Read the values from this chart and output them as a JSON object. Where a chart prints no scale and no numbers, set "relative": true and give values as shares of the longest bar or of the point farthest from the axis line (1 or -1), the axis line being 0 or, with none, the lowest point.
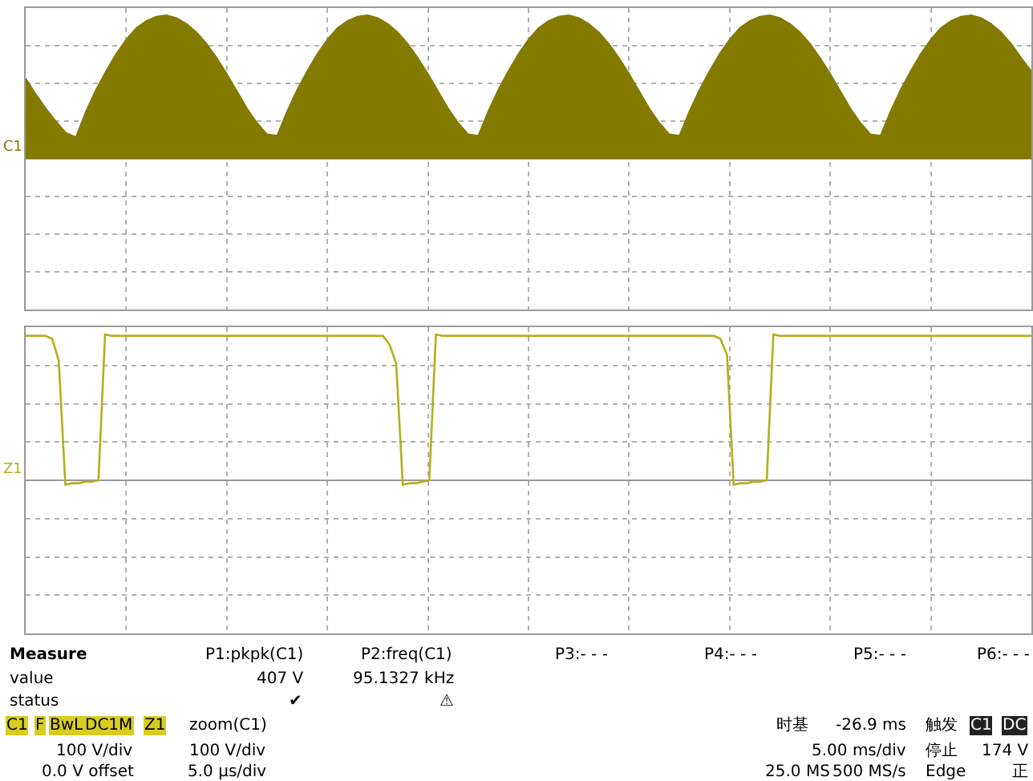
{
  "chart_data": [
    {
      "type": "area",
      "relative": true,
      "grid": true,
      "annotations": [
        "C1"
      ],
      "categories": [
        null,
        null,
        null,
        null,
        null,
        null,
        null,
        null,
        null,
        null,
        null,
        null,
        null,
        null,
        null,
        null,
        null,
        null,
        null,
        null,
        null,
        null,
        null,
        null,
        null,
        null,
        null,
        null,
        null,
        null,
        null,
        null,
        null,
        null,
        null,
        null,
        null,
        null,
        null,
        null,
        null,
        null,
        null,
        null,
        null,
        null,
        null,
        null,
        null,
        null,
        null,
        null,
        null,
        null,
        null,
        null,
        null,
        null,
        null,
        null,
        null,
        null,
        null,
        null,
        null,
        null,
        null,
        null,
        null,
        null,
        null,
        null,
        null,
        null,
        null,
        null,
        null,
        null,
        null,
        null,
        null,
        null,
        null,
        null,
        null,
        null,
        null,
        null,
        null,
        null,
        null,
        null,
        null,
        null,
        null,
        null,
        null,
        null,
        null,
        null,
        null
      ],
      "series": [
        {
          "color": "#857a00",
          "values": [
            0.56,
            0.45,
            0.35,
            0.26,
            0.18,
            0.15,
            0.33,
            0.48,
            0.61,
            0.73,
            0.83,
            0.91,
            0.96,
            0.99,
            1.0,
            0.98,
            0.94,
            0.88,
            0.8,
            0.7,
            0.59,
            0.47,
            0.35,
            0.25,
            0.17,
            0.16,
            0.33,
            0.48,
            0.61,
            0.73,
            0.83,
            0.91,
            0.96,
            0.99,
            1.0,
            0.98,
            0.94,
            0.88,
            0.8,
            0.7,
            0.59,
            0.47,
            0.35,
            0.25,
            0.17,
            0.16,
            0.33,
            0.48,
            0.61,
            0.73,
            0.83,
            0.91,
            0.96,
            0.99,
            1.0,
            0.98,
            0.94,
            0.88,
            0.8,
            0.7,
            0.59,
            0.47,
            0.35,
            0.25,
            0.17,
            0.16,
            0.33,
            0.48,
            0.61,
            0.73,
            0.83,
            0.91,
            0.96,
            0.99,
            1.0,
            0.98,
            0.94,
            0.88,
            0.8,
            0.7,
            0.59,
            0.47,
            0.35,
            0.25,
            0.17,
            0.16,
            0.33,
            0.48,
            0.61,
            0.73,
            0.83,
            0.91,
            0.96,
            0.99,
            1.0,
            0.98,
            0.94,
            0.88,
            0.8,
            0.7,
            0.61
          ]
        }
      ]
    },
    {
      "type": "line",
      "relative": true,
      "grid": true,
      "marker": "none",
      "line_style": "solid",
      "annotations": [
        "Z1"
      ],
      "categories": [
        null,
        null,
        null,
        null,
        null,
        null,
        null,
        null,
        null,
        null,
        null,
        null,
        null,
        null,
        null,
        null,
        null,
        null,
        null,
        null,
        null,
        null,
        null,
        null,
        null,
        null,
        null,
        null,
        null,
        null,
        null,
        null,
        null,
        null,
        null,
        null,
        null,
        null,
        null,
        null,
        null,
        null,
        null,
        null,
        null,
        null,
        null,
        null,
        null,
        null,
        null,
        null,
        null,
        null,
        null,
        null,
        null,
        null,
        null,
        null,
        null,
        null,
        null,
        null,
        null,
        null,
        null,
        null,
        null,
        null,
        null,
        null,
        null,
        null,
        null,
        null,
        null,
        null,
        null,
        null,
        null,
        null,
        null,
        null,
        null,
        null,
        null,
        null,
        null,
        null,
        null,
        null,
        null,
        null,
        null,
        null,
        null,
        null,
        null,
        null,
        null,
        null,
        null,
        null,
        null,
        null,
        null,
        null,
        null,
        null,
        null,
        null,
        null,
        null,
        null,
        null,
        null,
        null,
        null,
        null,
        null,
        null,
        null,
        null,
        null,
        null,
        null,
        null,
        null,
        null,
        null,
        null,
        null,
        null,
        null,
        null,
        null,
        null,
        null,
        null,
        null,
        null,
        null,
        null,
        null,
        null,
        null,
        null,
        null,
        null,
        null,
        null,
        null
      ],
      "series": [
        {
          "color": "#b5ad1a",
          "values": [
            0.99,
            0.99,
            0.99,
            0.99,
            0.97,
            0.82,
            -0.03,
            -0.02,
            -0.02,
            -0.01,
            -0.01,
            0.0,
            1.0,
            0.99,
            0.99,
            0.99,
            0.99,
            0.99,
            0.99,
            0.99,
            0.99,
            0.99,
            0.99,
            0.99,
            0.99,
            0.99,
            0.99,
            0.99,
            0.99,
            0.99,
            0.99,
            0.99,
            0.99,
            0.99,
            0.99,
            0.99,
            0.99,
            0.99,
            0.99,
            0.99,
            0.99,
            0.99,
            0.99,
            0.99,
            0.99,
            0.99,
            0.99,
            0.99,
            0.99,
            0.99,
            0.99,
            0.99,
            0.99,
            0.99,
            0.99,
            0.93,
            0.8,
            -0.03,
            -0.02,
            -0.02,
            -0.01,
            0.0,
            1.0,
            0.99,
            0.99,
            0.99,
            0.99,
            0.99,
            0.99,
            0.99,
            0.99,
            0.99,
            0.99,
            0.99,
            0.99,
            0.99,
            0.99,
            0.99,
            0.99,
            0.99,
            0.99,
            0.99,
            0.99,
            0.99,
            0.99,
            0.99,
            0.99,
            0.99,
            0.99,
            0.99,
            0.99,
            0.99,
            0.99,
            0.99,
            0.99,
            0.99,
            0.99,
            0.99,
            0.99,
            0.99,
            0.99,
            0.99,
            0.99,
            0.99,
            0.99,
            0.97,
            0.86,
            -0.03,
            -0.02,
            -0.02,
            -0.01,
            -0.01,
            0.0,
            1.0,
            0.99,
            0.99,
            0.99,
            0.99,
            0.99,
            0.99,
            0.99,
            0.99,
            0.99,
            0.99,
            0.99,
            0.99,
            0.99,
            0.99,
            0.99,
            0.99,
            0.99,
            0.99,
            0.99,
            0.99,
            0.99,
            0.99,
            0.99,
            0.99,
            0.99,
            0.99,
            0.99,
            0.99,
            0.99,
            0.99,
            0.99,
            0.99,
            0.99,
            0.99,
            0.99,
            0.99,
            0.99,
            0.99,
            0.99
          ]
        }
      ]
    },
    {
      "type": "other",
      "annotations": [
        "Measure",
        "P1:pkpk(C1)",
        "P2:freq(C1)",
        "P3:- - -",
        "P4:- - -",
        "P5:- - -",
        "P6:- - -",
        "value",
        "407 V",
        "95.1327 kHz",
        "status",
        "✔",
        "⚠",
        "C1",
        "F",
        "BwL",
        "DC1M",
        "100 V/div",
        "0.0 V offset",
        "Z1",
        "zoom(C1)",
        "100 V/div",
        "5.0 µs/div",
        "时基",
        "-26.9 ms",
        "5.00 ms/div",
        "25.0 MS",
        "500 MS/s",
        "触发",
        "C1",
        "DC",
        "停止",
        "174 V",
        "Edge",
        "正"
      ]
    }
  ]
}
